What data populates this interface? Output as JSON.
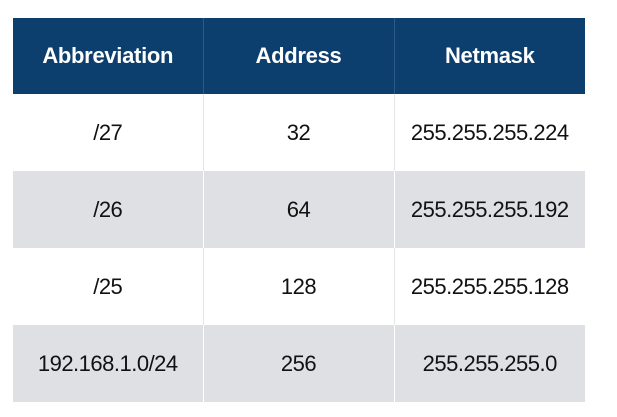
{
  "table": {
    "headers": [
      "Abbreviation",
      "Address",
      "Netmask"
    ],
    "rows": [
      [
        "/27",
        "32",
        "255.255.255.224"
      ],
      [
        "/26",
        "64",
        "255.255.255.192"
      ],
      [
        "/25",
        "128",
        "255.255.255.128"
      ],
      [
        "192.168.1.0/24",
        "256",
        "255.255.255.0"
      ]
    ]
  },
  "colors": {
    "header_bg": "#0d3f6e",
    "header_text": "#ffffff",
    "stripe_bg": "#dfe0e3"
  }
}
